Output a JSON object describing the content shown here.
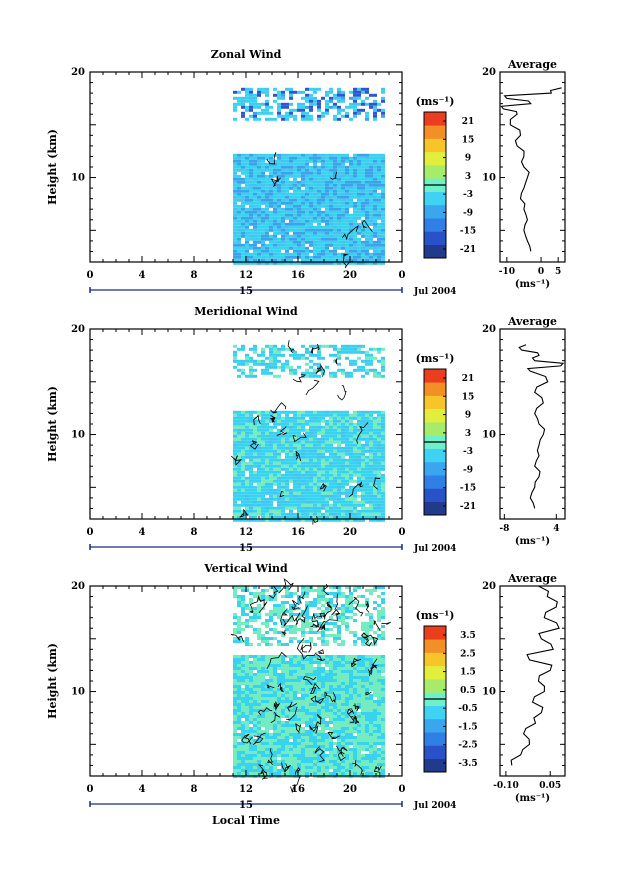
{
  "chart_data": [
    {
      "type": "heatmap",
      "title": "Zonal Wind",
      "ylabel": "Height (km)",
      "xlim": [
        0,
        24
      ],
      "ylim": [
        2,
        20
      ],
      "x_ticks": [
        "0",
        "4",
        "8",
        "12",
        "16",
        "20",
        "0"
      ],
      "y_ticks": [
        "10",
        "20"
      ],
      "date_day": "15",
      "date_label": "Jul 2004",
      "unit_label": "(ms⁻¹)",
      "colorbar_ticks": [
        "21",
        "15",
        "9",
        "3",
        "-3",
        "-9",
        "-15",
        "-21"
      ],
      "data_extent": {
        "x_start": 11,
        "x_end": 22.5,
        "gap_km": [
          12.5,
          15.5
        ],
        "top_km": 18.5
      },
      "profile": {
        "title": "Average",
        "xlabel": "(ms⁻¹)",
        "x_ticks": [
          "-10",
          "0",
          "5"
        ],
        "xlim": [
          -12,
          7
        ],
        "y_ticks": [
          "10",
          "20"
        ],
        "heights_km": [
          3,
          4,
          5,
          6,
          7,
          8,
          9,
          10,
          11,
          12,
          13,
          14,
          15,
          16,
          16.5,
          17,
          17.5,
          18,
          18.5
        ],
        "values": [
          -3,
          -4,
          -5,
          -4,
          -5,
          -6,
          -5,
          -4,
          -5,
          -5,
          -7,
          -6,
          -9,
          -7,
          -11,
          -3,
          -10,
          3,
          6
        ]
      }
    },
    {
      "type": "heatmap",
      "title": "Meridional Wind",
      "ylabel": "Height (km)",
      "xlim": [
        0,
        24
      ],
      "ylim": [
        2,
        20
      ],
      "x_ticks": [
        "0",
        "4",
        "8",
        "12",
        "16",
        "20",
        "0"
      ],
      "y_ticks": [
        "10",
        "20"
      ],
      "date_day": "15",
      "date_label": "Jul 2004",
      "unit_label": "(ms⁻¹)",
      "colorbar_ticks": [
        "21",
        "15",
        "9",
        "3",
        "-3",
        "-9",
        "-15",
        "-21"
      ],
      "data_extent": {
        "x_start": 11,
        "x_end": 22.5,
        "gap_km": [
          12.5,
          15.5
        ],
        "top_km": 18.5
      },
      "profile": {
        "title": "Average",
        "xlabel": "(ms⁻¹)",
        "x_ticks": [
          "-8",
          "4"
        ],
        "xlim": [
          -9,
          6
        ],
        "y_ticks": [
          "10",
          "20"
        ],
        "heights_km": [
          3,
          4,
          5,
          6,
          7,
          8,
          9,
          10,
          11,
          12,
          13,
          14,
          15,
          16,
          16.5,
          17,
          17.5,
          18,
          18.5
        ],
        "values": [
          -1,
          -2,
          -1,
          0,
          -1,
          0,
          0,
          1,
          0,
          -1,
          1,
          -1,
          2,
          -2,
          5,
          -1,
          0,
          -4,
          -3
        ]
      }
    },
    {
      "type": "heatmap",
      "title": "Vertical Wind",
      "xlabel": "Local Time",
      "ylabel": "Height (km)",
      "xlim": [
        0,
        24
      ],
      "ylim": [
        2,
        20
      ],
      "x_ticks": [
        "0",
        "4",
        "8",
        "12",
        "16",
        "20",
        "0"
      ],
      "y_ticks": [
        "10",
        "20"
      ],
      "date_day": "15",
      "date_label": "Jul 2004",
      "unit_label": "(ms⁻¹)",
      "colorbar_ticks": [
        "3.5",
        "2.5",
        "1.5",
        "0.5",
        "-0.5",
        "-1.5",
        "-2.5",
        "-3.5"
      ],
      "data_extent": {
        "x_start": 11,
        "x_end": 22.5,
        "gap_km": [
          13.5,
          14.5
        ],
        "top_km": 20
      },
      "profile": {
        "title": "Average",
        "xlabel": "(ms⁻¹)",
        "x_ticks": [
          "-0.10",
          "0.05"
        ],
        "xlim": [
          -0.12,
          0.1
        ],
        "y_ticks": [
          "10",
          "20"
        ],
        "heights_km": [
          3,
          4,
          5,
          6,
          7,
          8,
          9,
          10,
          11,
          12,
          13,
          14,
          15,
          16,
          17,
          18,
          19,
          20
        ],
        "values": [
          -0.08,
          -0.05,
          -0.02,
          -0.04,
          0.0,
          0.02,
          -0.01,
          0.03,
          0.01,
          0.05,
          -0.02,
          0.06,
          0.02,
          0.08,
          0.03,
          0.07,
          0.04,
          0.01
        ]
      }
    }
  ],
  "colors": {
    "colorbar": [
      "#223a8c",
      "#2a52c8",
      "#2f7fe6",
      "#3aa6f0",
      "#3fd2f3",
      "#6ef0c8",
      "#a6ec6a",
      "#e2ee3c",
      "#f7c52a",
      "#f28f25",
      "#ea3e1f"
    ],
    "field_main": "#39d3f0",
    "field_alt": "#42c5ef",
    "field_green": "#72ecc0",
    "field_blue": "#3aa3ea"
  }
}
